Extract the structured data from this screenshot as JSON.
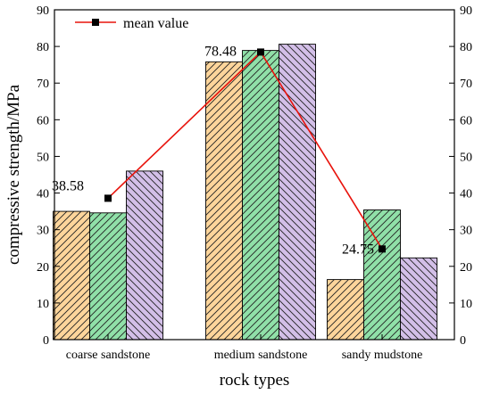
{
  "chart_data": {
    "type": "bar",
    "categories": [
      "coarse sandstone",
      "medium sandstone",
      "sandy mudstone"
    ],
    "series": [
      {
        "values": [
          35.0,
          75.8,
          16.4
        ]
      },
      {
        "values": [
          34.6,
          78.9,
          35.4
        ]
      },
      {
        "values": [
          46.0,
          80.6,
          22.3
        ]
      }
    ],
    "line_series": {
      "name": "mean value",
      "values": [
        38.58,
        78.48,
        24.75
      ],
      "labels": [
        "38.58",
        "78.48",
        "24.75"
      ]
    },
    "xlabel": "rock types",
    "ylabel": "compressive strength/MPa",
    "ylim": [
      0,
      90
    ],
    "yticks": [
      0,
      10,
      20,
      30,
      40,
      50,
      60,
      70,
      80,
      90
    ],
    "grid": false,
    "legend_placement": "top-left",
    "colors": {
      "series": [
        "#fdd59b",
        "#90e0a8",
        "#d3bfe8"
      ],
      "hatch": "#222222",
      "line": "#e8130c",
      "marker": "#000000",
      "axis": "#000000"
    }
  }
}
